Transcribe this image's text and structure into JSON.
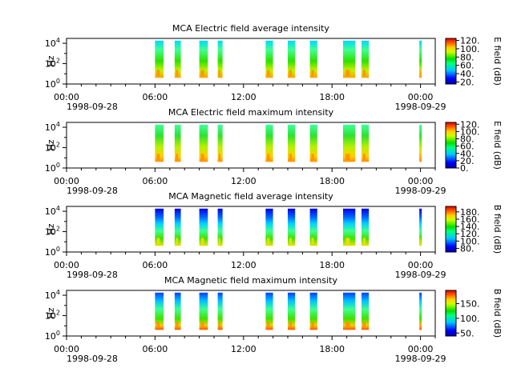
{
  "chart_data": [
    {
      "type": "heatmap",
      "title": "MCA  Electric field average intensity",
      "ylabel": "Hz",
      "yticks": [
        "10^0",
        "10^2",
        "10^4"
      ],
      "ylim": [
        1,
        30000
      ],
      "xlim": [
        "1998-09-28 00:00",
        "1998-09-29 01:00"
      ],
      "xticks": [
        "00:00",
        "06:00",
        "12:00",
        "18:00",
        "00:00"
      ],
      "xtick_dates": [
        "1998-09-28",
        "1998-09-29"
      ],
      "colorbar": {
        "label": "E field (dB)",
        "ticks": [
          "20.",
          "40.",
          "60.",
          "80.",
          "100.",
          "120."
        ],
        "range": [
          15,
          125
        ]
      },
      "scale": "log",
      "intervals": [
        [
          "06:00",
          "06:35"
        ],
        [
          "07:20",
          "07:45"
        ],
        [
          "09:00",
          "09:35"
        ],
        [
          "10:15",
          "10:35"
        ],
        [
          "13:30",
          "14:00"
        ],
        [
          "15:00",
          "15:30"
        ],
        [
          "16:30",
          "17:00"
        ],
        [
          "18:45",
          "19:35"
        ],
        [
          "20:00",
          "20:30"
        ],
        [
          "23:55",
          "00:05"
        ]
      ]
    },
    {
      "type": "heatmap",
      "title": "MCA  Electric field maximum intensity",
      "ylabel": "Hz",
      "yticks": [
        "10^0",
        "10^2",
        "10^4"
      ],
      "ylim": [
        1,
        30000
      ],
      "xlim": [
        "1998-09-28 00:00",
        "1998-09-29 01:00"
      ],
      "xticks": [
        "00:00",
        "06:00",
        "12:00",
        "18:00",
        "00:00"
      ],
      "xtick_dates": [
        "1998-09-28",
        "1998-09-29"
      ],
      "colorbar": {
        "label": "E field (dB)",
        "ticks": [
          "0.",
          "20.",
          "40.",
          "60.",
          "80.",
          "100.",
          "120."
        ],
        "range": [
          0,
          125
        ]
      },
      "scale": "log",
      "intervals": [
        [
          "06:00",
          "06:35"
        ],
        [
          "07:20",
          "07:45"
        ],
        [
          "09:00",
          "09:35"
        ],
        [
          "10:15",
          "10:35"
        ],
        [
          "13:30",
          "14:00"
        ],
        [
          "15:00",
          "15:30"
        ],
        [
          "16:30",
          "17:00"
        ],
        [
          "18:45",
          "19:35"
        ],
        [
          "20:00",
          "20:30"
        ],
        [
          "23:55",
          "00:05"
        ]
      ]
    },
    {
      "type": "heatmap",
      "title": "MCA  Magnetic field average intensity",
      "ylabel": "Hz",
      "yticks": [
        "10^0",
        "10^2",
        "10^4"
      ],
      "ylim": [
        1,
        30000
      ],
      "xlim": [
        "1998-09-28 00:00",
        "1998-09-29 01:00"
      ],
      "xticks": [
        "00:00",
        "06:00",
        "12:00",
        "18:00",
        "00:00"
      ],
      "xtick_dates": [
        "1998-09-28",
        "1998-09-29"
      ],
      "colorbar": {
        "label": "B field (dB)",
        "ticks": [
          "80.",
          "100.",
          "120.",
          "140.",
          "160.",
          "180."
        ],
        "range": [
          70,
          195
        ]
      },
      "scale": "log",
      "intervals": [
        [
          "06:00",
          "06:35"
        ],
        [
          "07:20",
          "07:45"
        ],
        [
          "09:00",
          "09:35"
        ],
        [
          "10:15",
          "10:35"
        ],
        [
          "13:30",
          "14:00"
        ],
        [
          "15:00",
          "15:30"
        ],
        [
          "16:30",
          "17:00"
        ],
        [
          "18:45",
          "19:35"
        ],
        [
          "20:00",
          "20:30"
        ],
        [
          "23:55",
          "00:05"
        ]
      ]
    },
    {
      "type": "heatmap",
      "title": "MCA  Magnetic field maximum intensity",
      "ylabel": "Hz",
      "yticks": [
        "10^0",
        "10^2",
        "10^4"
      ],
      "ylim": [
        1,
        30000
      ],
      "xlim": [
        "1998-09-28 00:00",
        "1998-09-29 01:00"
      ],
      "xticks": [
        "00:00",
        "06:00",
        "12:00",
        "18:00",
        "00:00"
      ],
      "xtick_dates": [
        "1998-09-28",
        "1998-09-29"
      ],
      "colorbar": {
        "label": "B field (dB)",
        "ticks": [
          "50.",
          "100.",
          "150."
        ],
        "range": [
          40,
          195
        ]
      },
      "scale": "log",
      "intervals": [
        [
          "06:00",
          "06:35"
        ],
        [
          "07:20",
          "07:45"
        ],
        [
          "09:00",
          "09:35"
        ],
        [
          "10:15",
          "10:35"
        ],
        [
          "13:30",
          "14:00"
        ],
        [
          "15:00",
          "15:30"
        ],
        [
          "16:30",
          "17:00"
        ],
        [
          "18:45",
          "19:35"
        ],
        [
          "20:00",
          "20:30"
        ],
        [
          "23:55",
          "00:05"
        ]
      ]
    }
  ]
}
